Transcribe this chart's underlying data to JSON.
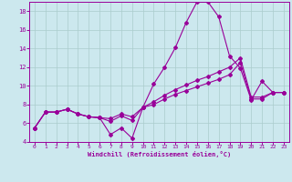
{
  "bg_color": "#cce8ee",
  "grid_color": "#aacccc",
  "line_color": "#990099",
  "xlabel": "Windchill (Refroidissement éolien,°C)",
  "xlim_min": -0.5,
  "xlim_max": 23.5,
  "ylim_min": 4,
  "ylim_max": 19,
  "yticks": [
    4,
    6,
    8,
    10,
    12,
    14,
    16,
    18
  ],
  "xticks": [
    0,
    1,
    2,
    3,
    4,
    5,
    6,
    7,
    8,
    9,
    10,
    11,
    12,
    13,
    14,
    15,
    16,
    17,
    18,
    19,
    20,
    21,
    22,
    23
  ],
  "curve1": [
    5.5,
    7.2,
    7.2,
    7.5,
    7.0,
    6.7,
    6.6,
    4.8,
    5.5,
    4.4,
    7.7,
    10.2,
    12.0,
    14.1,
    16.8,
    19.0,
    19.0,
    17.4,
    13.2,
    11.9,
    8.5,
    10.5,
    9.3,
    9.3
  ],
  "curve2": [
    5.5,
    7.2,
    7.2,
    7.5,
    7.0,
    6.7,
    6.6,
    6.2,
    6.8,
    6.3,
    7.7,
    8.3,
    9.0,
    9.6,
    10.1,
    10.6,
    11.0,
    11.5,
    12.0,
    13.0,
    8.8,
    8.8,
    9.3,
    9.3
  ],
  "curve3": [
    5.5,
    7.2,
    7.2,
    7.5,
    7.0,
    6.7,
    6.6,
    6.5,
    7.0,
    6.7,
    7.7,
    8.0,
    8.6,
    9.1,
    9.5,
    9.9,
    10.3,
    10.7,
    11.2,
    12.5,
    8.6,
    8.6,
    9.3,
    9.3
  ]
}
